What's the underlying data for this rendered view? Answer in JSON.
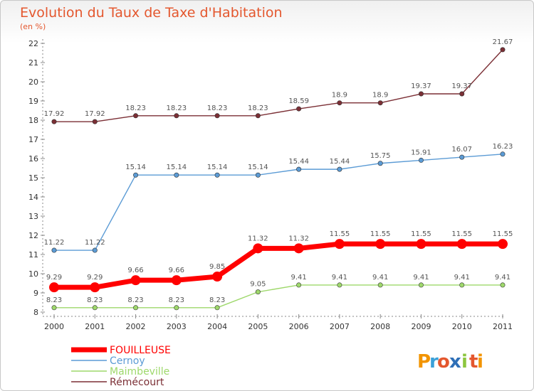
{
  "title": "Evolution du Taux de Taxe d'Habitation",
  "subtitle": "(en %)",
  "logo": {
    "text": "Proxiti",
    "letters": [
      "P",
      "r",
      "o",
      "x",
      "i",
      "t",
      "i"
    ],
    "colors": [
      "#f29400",
      "#3aa0d8",
      "#e4572e",
      "#2e6fb7",
      "#8cc63f",
      "#e4572e",
      "#f29400"
    ]
  },
  "chart_data": {
    "type": "line",
    "title": "Evolution du Taux de Taxe d'Habitation",
    "subtitle": "(en %)",
    "x": [
      "2000",
      "2001",
      "2002",
      "2003",
      "2004",
      "2005",
      "2006",
      "2007",
      "2008",
      "2009",
      "2010",
      "2011"
    ],
    "ylim": [
      8,
      22
    ],
    "yticks": [
      "8",
      "9",
      "10",
      "11",
      "12",
      "13",
      "14",
      "15",
      "16",
      "17",
      "18",
      "19",
      "20",
      "21",
      "22"
    ],
    "grid": false,
    "legend_position": "bottom-left",
    "series": [
      {
        "name": "FOUILLEUSE",
        "color": "#ff0000",
        "bold": true,
        "values": [
          9.29,
          9.29,
          9.66,
          9.66,
          9.85,
          11.32,
          11.32,
          11.55,
          11.55,
          11.55,
          11.55,
          11.55
        ],
        "labels": [
          "9.29",
          "9.29",
          "9.66",
          "9.66",
          "9.85",
          "11.32",
          "11.32",
          "11.55",
          "11.55",
          "11.55",
          "11.55",
          "11.55"
        ]
      },
      {
        "name": "Cernoy",
        "color": "#5b9bd5",
        "bold": false,
        "values": [
          11.22,
          11.22,
          15.14,
          15.14,
          15.14,
          15.14,
          15.44,
          15.44,
          15.75,
          15.91,
          16.07,
          16.23
        ],
        "labels": [
          "11.22",
          "11.22",
          "15.14",
          "15.14",
          "15.14",
          "15.14",
          "15.44",
          "15.44",
          "15.75",
          "15.91",
          "16.07",
          "16.23"
        ]
      },
      {
        "name": "Maimbeville",
        "color": "#9ed86b",
        "bold": false,
        "values": [
          8.23,
          8.23,
          8.23,
          8.23,
          8.23,
          9.05,
          9.41,
          9.41,
          9.41,
          9.41,
          9.41,
          9.41
        ],
        "labels": [
          "8.23",
          "8.23",
          "8.23",
          "8.23",
          "8.23",
          "9.05",
          "9.41",
          "9.41",
          "9.41",
          "9.41",
          "9.41",
          "9.41"
        ]
      },
      {
        "name": "Rémécourt",
        "color": "#7b2f35",
        "bold": false,
        "values": [
          17.92,
          17.92,
          18.23,
          18.23,
          18.23,
          18.23,
          18.59,
          18.9,
          18.9,
          19.37,
          19.37,
          21.67
        ],
        "labels": [
          "17.92",
          "17.92",
          "18.23",
          "18.23",
          "18.23",
          "18.23",
          "18.59",
          "18.9",
          "18.9",
          "19.37",
          "19.37",
          "21.67"
        ]
      }
    ]
  }
}
